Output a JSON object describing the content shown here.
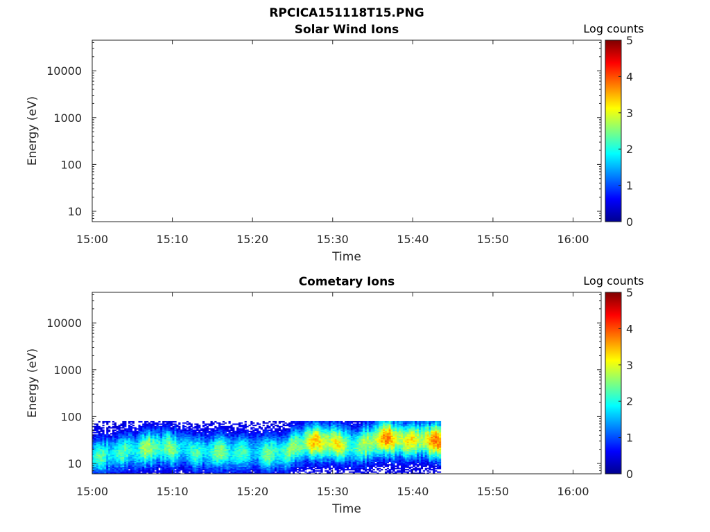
{
  "figure_title": "RPCICA151118T15.PNG",
  "colors": {
    "axis": "#262626",
    "colormap": [
      "#00008f",
      "#0000ff",
      "#007fff",
      "#00ffff",
      "#7fff7f",
      "#ffff00",
      "#ff7f00",
      "#ff0000",
      "#7f0000"
    ]
  },
  "chart_data": [
    {
      "type": "heatmap",
      "title": "Solar Wind Ions",
      "xlabel": "Time",
      "ylabel": "Energy (eV)",
      "x_ticks": [
        "15:00",
        "15:10",
        "15:20",
        "15:30",
        "15:40",
        "15:50",
        "16:00"
      ],
      "y_ticks": [
        "10",
        "100",
        "1000",
        "10000"
      ],
      "y_scale": "log",
      "y_range_eV": [
        6,
        45000
      ],
      "x_range_minutes": [
        0,
        63.5
      ],
      "colorbar": {
        "label": "Log counts",
        "ticks": [
          "0",
          "1",
          "2",
          "3",
          "4",
          "5"
        ],
        "range": [
          0,
          5
        ]
      },
      "data": []
    },
    {
      "type": "heatmap",
      "title": "Cometary Ions",
      "xlabel": "Time",
      "ylabel": "Energy (eV)",
      "x_ticks": [
        "15:00",
        "15:10",
        "15:20",
        "15:30",
        "15:40",
        "15:50",
        "16:00"
      ],
      "y_ticks": [
        "10",
        "100",
        "1000",
        "10000"
      ],
      "y_scale": "log",
      "y_range_eV": [
        6,
        45000
      ],
      "x_range_minutes": [
        0,
        63.5
      ],
      "colorbar": {
        "label": "Log counts",
        "ticks": [
          "0",
          "1",
          "2",
          "3",
          "4",
          "5"
        ],
        "range": [
          0,
          5
        ]
      },
      "data_extent": {
        "time": [
          "15:00",
          "15:43.5"
        ],
        "energy_eV": [
          6,
          80
        ]
      },
      "data": [
        {
          "time": "15:00",
          "peak_energy_eV": 15,
          "peak_log_counts": 1.8
        },
        {
          "time": "15:03",
          "peak_energy_eV": 16,
          "peak_log_counts": 1.9
        },
        {
          "time": "15:06",
          "peak_energy_eV": 20,
          "peak_log_counts": 2.6
        },
        {
          "time": "15:09",
          "peak_energy_eV": 22,
          "peak_log_counts": 2.1
        },
        {
          "time": "15:12",
          "peak_energy_eV": 18,
          "peak_log_counts": 2.2
        },
        {
          "time": "15:15",
          "peak_energy_eV": 17,
          "peak_log_counts": 2.0
        },
        {
          "time": "15:18",
          "peak_energy_eV": 18,
          "peak_log_counts": 2.2
        },
        {
          "time": "15:21",
          "peak_energy_eV": 17,
          "peak_log_counts": 2.0
        },
        {
          "time": "15:24",
          "peak_energy_eV": 18,
          "peak_log_counts": 2.1
        },
        {
          "time": "15:27",
          "peak_energy_eV": 30,
          "peak_log_counts": 3.3
        },
        {
          "time": "15:30",
          "peak_energy_eV": 28,
          "peak_log_counts": 2.8
        },
        {
          "time": "15:33",
          "peak_energy_eV": 22,
          "peak_log_counts": 2.5
        },
        {
          "time": "15:36",
          "peak_energy_eV": 35,
          "peak_log_counts": 3.2
        },
        {
          "time": "15:39",
          "peak_energy_eV": 32,
          "peak_log_counts": 3.1
        },
        {
          "time": "15:42",
          "peak_energy_eV": 30,
          "peak_log_counts": 3.3
        }
      ]
    }
  ]
}
